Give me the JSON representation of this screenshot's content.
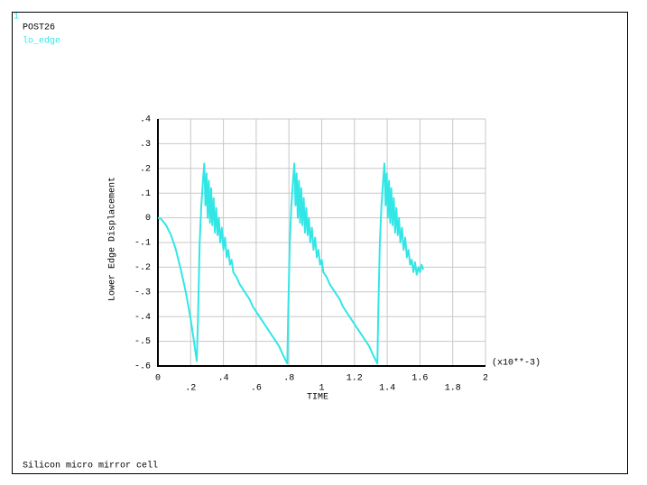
{
  "page": {
    "window_number": "1",
    "processor": "POST26",
    "footer": "Silicon micro mirror cell"
  },
  "chart_data": {
    "type": "line",
    "x_label": "TIME",
    "x_unit_label": "(x10**-3)",
    "y_label": "Lower Edge Displacement",
    "grid": true,
    "xlim": [
      0,
      2
    ],
    "ylim": [
      -0.6,
      0.4
    ],
    "xticks": [
      0,
      {
        "value": 0.2,
        "label": ".2"
      },
      {
        "value": 0.4,
        "label": ".4"
      },
      {
        "value": 0.6,
        "label": ".6"
      },
      {
        "value": 0.8,
        "label": ".8"
      },
      1,
      1.2,
      1.4,
      1.6,
      1.8,
      2
    ],
    "yticks": [
      {
        "value": 0.4,
        "label": ".4"
      },
      {
        "value": 0.3,
        "label": ".3"
      },
      {
        "value": 0.2,
        "label": ".2"
      },
      {
        "value": 0.1,
        "label": ".1"
      },
      0,
      {
        "value": -0.1,
        "label": "-.1"
      },
      {
        "value": -0.2,
        "label": "-.2"
      },
      {
        "value": -0.3,
        "label": "-.3"
      },
      {
        "value": -0.4,
        "label": "-.4"
      },
      {
        "value": -0.5,
        "label": "-.5"
      },
      {
        "value": -0.6,
        "label": "-.6"
      }
    ],
    "x": [
      0,
      0.02,
      0.05,
      0.08,
      0.11,
      0.14,
      0.17,
      0.2,
      0.22,
      0.237,
      0.245,
      0.255,
      0.265,
      0.275,
      0.283,
      0.29,
      0.297,
      0.304,
      0.311,
      0.318,
      0.325,
      0.332,
      0.34,
      0.348,
      0.356,
      0.364,
      0.372,
      0.38,
      0.39,
      0.4,
      0.41,
      0.42,
      0.43,
      0.44,
      0.45,
      0.46,
      0.48,
      0.5,
      0.52,
      0.54,
      0.56,
      0.58,
      0.6,
      0.62,
      0.64,
      0.66,
      0.68,
      0.7,
      0.72,
      0.74,
      0.76,
      0.79,
      0.795,
      0.805,
      0.815,
      0.825,
      0.833,
      0.84,
      0.847,
      0.854,
      0.861,
      0.868,
      0.875,
      0.882,
      0.89,
      0.898,
      0.906,
      0.914,
      0.922,
      0.93,
      0.94,
      0.95,
      0.96,
      0.97,
      0.98,
      0.99,
      1.0,
      1.01,
      1.03,
      1.05,
      1.07,
      1.09,
      1.11,
      1.13,
      1.15,
      1.17,
      1.19,
      1.21,
      1.23,
      1.25,
      1.27,
      1.29,
      1.31,
      1.34,
      1.345,
      1.355,
      1.365,
      1.375,
      1.383,
      1.39,
      1.397,
      1.404,
      1.411,
      1.418,
      1.425,
      1.432,
      1.44,
      1.448,
      1.456,
      1.464,
      1.472,
      1.48,
      1.49,
      1.5,
      1.51,
      1.52,
      1.53,
      1.54,
      1.55,
      1.56,
      1.57,
      1.58,
      1.59,
      1.6,
      1.61,
      1.62
    ],
    "series": [
      {
        "name": "lo_edge",
        "color": "#33e6e6",
        "values": [
          0,
          -0.005,
          -0.03,
          -0.07,
          -0.13,
          -0.21,
          -0.3,
          -0.41,
          -0.5,
          -0.58,
          -0.4,
          -0.1,
          0.05,
          0.15,
          0.22,
          0.05,
          0.18,
          0.0,
          0.15,
          -0.02,
          0.12,
          -0.03,
          0.08,
          -0.06,
          0.04,
          -0.07,
          0.0,
          -0.1,
          -0.04,
          -0.13,
          -0.08,
          -0.16,
          -0.13,
          -0.19,
          -0.17,
          -0.22,
          -0.24,
          -0.27,
          -0.29,
          -0.31,
          -0.33,
          -0.36,
          -0.38,
          -0.4,
          -0.42,
          -0.44,
          -0.46,
          -0.48,
          -0.5,
          -0.52,
          -0.55,
          -0.59,
          -0.4,
          -0.1,
          0.05,
          0.15,
          0.22,
          0.05,
          0.18,
          0.0,
          0.15,
          -0.02,
          0.12,
          -0.03,
          0.08,
          -0.06,
          0.04,
          -0.07,
          0.0,
          -0.1,
          -0.04,
          -0.13,
          -0.08,
          -0.16,
          -0.13,
          -0.19,
          -0.17,
          -0.22,
          -0.24,
          -0.27,
          -0.29,
          -0.31,
          -0.33,
          -0.36,
          -0.38,
          -0.4,
          -0.42,
          -0.44,
          -0.46,
          -0.48,
          -0.5,
          -0.52,
          -0.55,
          -0.59,
          -0.4,
          -0.1,
          0.05,
          0.15,
          0.22,
          0.05,
          0.18,
          0.0,
          0.15,
          -0.02,
          0.12,
          -0.03,
          0.08,
          -0.06,
          0.04,
          -0.07,
          0.0,
          -0.1,
          -0.04,
          -0.13,
          -0.08,
          -0.16,
          -0.13,
          -0.19,
          -0.17,
          -0.22,
          -0.18,
          -0.23,
          -0.2,
          -0.22,
          -0.19,
          -0.21
        ]
      }
    ]
  }
}
